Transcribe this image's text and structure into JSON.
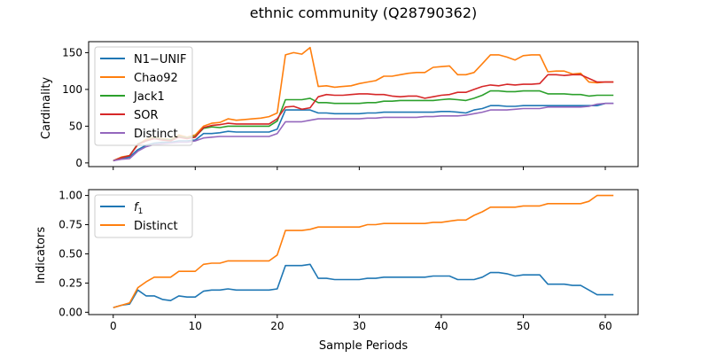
{
  "colors": {
    "blue": "#1f77b4",
    "orange": "#ff7f0e",
    "green": "#2ca02c",
    "red": "#d62728",
    "purple": "#9467bd"
  },
  "chart_data": [
    {
      "type": "line",
      "title": "ethnic community (Q28790362)",
      "xlabel": "",
      "ylabel": "Cardinality",
      "xlim": [
        -3,
        64
      ],
      "ylim": [
        -5,
        165
      ],
      "yticks": [
        0,
        50,
        100,
        150
      ],
      "xticks": [
        0,
        10,
        20,
        30,
        40,
        50,
        60
      ],
      "show_x_tick_labels": false,
      "grid": false,
      "legend_position": "top-left",
      "x": [
        0,
        1,
        2,
        3,
        4,
        5,
        6,
        7,
        8,
        9,
        10,
        11,
        12,
        13,
        14,
        15,
        16,
        17,
        18,
        19,
        20,
        21,
        22,
        23,
        24,
        25,
        26,
        27,
        28,
        29,
        30,
        31,
        32,
        33,
        34,
        35,
        36,
        37,
        38,
        39,
        40,
        41,
        42,
        43,
        44,
        45,
        46,
        47,
        48,
        49,
        50,
        51,
        52,
        53,
        54,
        55,
        56,
        57,
        58,
        59,
        60,
        61
      ],
      "series": [
        {
          "name": "N1−UNIF",
          "color": "blue",
          "values": [
            3,
            6,
            8,
            18,
            24,
            27,
            28,
            28,
            30,
            30,
            31,
            40,
            40,
            41,
            43,
            42,
            42,
            42,
            42,
            42,
            46,
            72,
            72,
            72,
            72,
            68,
            68,
            67,
            67,
            67,
            67,
            68,
            68,
            69,
            69,
            69,
            69,
            69,
            69,
            69,
            70,
            70,
            69,
            68,
            72,
            74,
            78,
            78,
            77,
            77,
            78,
            78,
            78,
            78,
            78,
            78,
            78,
            78,
            78,
            78,
            81,
            81
          ]
        },
        {
          "name": "Chao92",
          "color": "orange",
          "values": [
            3,
            8,
            10,
            25,
            32,
            35,
            33,
            32,
            38,
            35,
            38,
            50,
            54,
            55,
            60,
            58,
            59,
            60,
            61,
            63,
            68,
            147,
            150,
            148,
            157,
            104,
            105,
            103,
            104,
            105,
            108,
            110,
            112,
            118,
            118,
            120,
            122,
            123,
            123,
            130,
            131,
            132,
            120,
            120,
            123,
            135,
            147,
            147,
            144,
            140,
            146,
            147,
            147,
            124,
            125,
            125,
            121,
            122,
            110,
            109,
            110,
            110
          ]
        },
        {
          "name": "Jack1",
          "color": "green",
          "values": [
            3,
            7,
            10,
            26,
            30,
            34,
            32,
            31,
            36,
            34,
            36,
            47,
            49,
            48,
            50,
            50,
            50,
            50,
            50,
            50,
            57,
            86,
            86,
            86,
            88,
            82,
            82,
            81,
            81,
            81,
            81,
            82,
            82,
            84,
            84,
            85,
            85,
            85,
            85,
            85,
            86,
            87,
            86,
            85,
            88,
            92,
            98,
            98,
            97,
            97,
            98,
            98,
            98,
            94,
            94,
            94,
            93,
            93,
            91,
            92,
            92,
            92
          ]
        },
        {
          "name": "SOR",
          "color": "red",
          "values": [
            3,
            7,
            10,
            25,
            30,
            33,
            31,
            30,
            35,
            33,
            35,
            48,
            51,
            52,
            54,
            53,
            53,
            53,
            53,
            53,
            60,
            76,
            77,
            73,
            75,
            90,
            93,
            92,
            92,
            93,
            94,
            94,
            93,
            93,
            91,
            90,
            91,
            91,
            88,
            90,
            92,
            93,
            96,
            96,
            100,
            104,
            106,
            105,
            107,
            106,
            107,
            107,
            108,
            120,
            120,
            119,
            120,
            120,
            115,
            110,
            110,
            110
          ]
        },
        {
          "name": "Distinct",
          "color": "purple",
          "values": [
            3,
            5,
            6,
            16,
            22,
            25,
            26,
            27,
            28,
            28,
            30,
            34,
            35,
            36,
            36,
            36,
            36,
            36,
            36,
            36,
            40,
            56,
            56,
            56,
            58,
            60,
            60,
            60,
            60,
            60,
            60,
            61,
            61,
            62,
            62,
            62,
            62,
            62,
            63,
            63,
            64,
            64,
            64,
            65,
            67,
            69,
            72,
            72,
            72,
            73,
            74,
            74,
            74,
            76,
            76,
            76,
            76,
            76,
            77,
            80,
            81,
            81
          ]
        }
      ]
    },
    {
      "type": "line",
      "title": "",
      "xlabel": "Sample Periods",
      "ylabel": "Indicators",
      "xlim": [
        -3,
        64
      ],
      "ylim": [
        -0.02,
        1.05
      ],
      "yticks": [
        "0.00",
        "0.25",
        "0.50",
        "0.75",
        "1.00"
      ],
      "xticks": [
        0,
        10,
        20,
        30,
        40,
        50,
        60
      ],
      "grid": false,
      "legend_position": "top-left",
      "x": [
        0,
        1,
        2,
        3,
        4,
        5,
        6,
        7,
        8,
        9,
        10,
        11,
        12,
        13,
        14,
        15,
        16,
        17,
        18,
        19,
        20,
        21,
        22,
        23,
        24,
        25,
        26,
        27,
        28,
        29,
        30,
        31,
        32,
        33,
        34,
        35,
        36,
        37,
        38,
        39,
        40,
        41,
        42,
        43,
        44,
        45,
        46,
        47,
        48,
        49,
        50,
        51,
        52,
        53,
        54,
        55,
        56,
        57,
        58,
        59,
        60,
        61
      ],
      "series": [
        {
          "name": "f1",
          "color": "blue",
          "values": [
            0.04,
            0.06,
            0.07,
            0.19,
            0.14,
            0.14,
            0.11,
            0.1,
            0.14,
            0.13,
            0.13,
            0.18,
            0.19,
            0.19,
            0.2,
            0.19,
            0.19,
            0.19,
            0.19,
            0.19,
            0.2,
            0.4,
            0.4,
            0.4,
            0.41,
            0.29,
            0.29,
            0.28,
            0.28,
            0.28,
            0.28,
            0.29,
            0.29,
            0.3,
            0.3,
            0.3,
            0.3,
            0.3,
            0.3,
            0.31,
            0.31,
            0.31,
            0.28,
            0.28,
            0.28,
            0.3,
            0.34,
            0.34,
            0.33,
            0.31,
            0.32,
            0.32,
            0.32,
            0.24,
            0.24,
            0.24,
            0.23,
            0.23,
            0.19,
            0.15,
            0.15,
            0.15
          ]
        },
        {
          "name": "Distinct",
          "color": "orange",
          "values": [
            0.04,
            0.06,
            0.08,
            0.21,
            0.26,
            0.3,
            0.3,
            0.3,
            0.35,
            0.35,
            0.35,
            0.41,
            0.42,
            0.42,
            0.44,
            0.44,
            0.44,
            0.44,
            0.44,
            0.44,
            0.49,
            0.7,
            0.7,
            0.7,
            0.71,
            0.73,
            0.73,
            0.73,
            0.73,
            0.73,
            0.73,
            0.75,
            0.75,
            0.76,
            0.76,
            0.76,
            0.76,
            0.76,
            0.76,
            0.77,
            0.77,
            0.78,
            0.79,
            0.79,
            0.83,
            0.86,
            0.9,
            0.9,
            0.9,
            0.9,
            0.91,
            0.91,
            0.91,
            0.93,
            0.93,
            0.93,
            0.93,
            0.93,
            0.95,
            1.0,
            1.0,
            1.0
          ]
        }
      ]
    }
  ]
}
